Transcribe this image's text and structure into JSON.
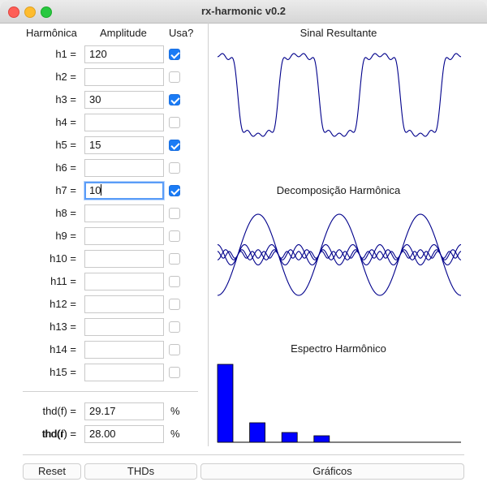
{
  "window": {
    "title": "rx-harmonic  v0.2"
  },
  "table": {
    "headers": {
      "harmonic": "Harmônica",
      "amplitude": "Amplitude",
      "use": "Usa?"
    },
    "rows": [
      {
        "label": "h1 =",
        "value": "120",
        "checked": true
      },
      {
        "label": "h2 =",
        "value": "",
        "checked": false
      },
      {
        "label": "h3 =",
        "value": "30",
        "checked": true
      },
      {
        "label": "h4 =",
        "value": "",
        "checked": false
      },
      {
        "label": "h5 =",
        "value": "15",
        "checked": true
      },
      {
        "label": "h6 =",
        "value": "",
        "checked": false
      },
      {
        "label": "h7 =",
        "value": "10",
        "checked": true,
        "focused": true
      },
      {
        "label": "h8 =",
        "value": "",
        "checked": false
      },
      {
        "label": "h9 =",
        "value": "",
        "checked": false
      },
      {
        "label": "h10 =",
        "value": "",
        "checked": false
      },
      {
        "label": "h11 =",
        "value": "",
        "checked": false
      },
      {
        "label": "h12 =",
        "value": "",
        "checked": false
      },
      {
        "label": "h13 =",
        "value": "",
        "checked": false
      },
      {
        "label": "h14 =",
        "value": "",
        "checked": false
      },
      {
        "label": "h15 =",
        "value": "",
        "checked": false
      }
    ]
  },
  "thd": {
    "f": {
      "label": "thd(f) =",
      "value": "29.17",
      "unit": "%"
    },
    "r": {
      "label": "thd(r) =",
      "value": "28.00",
      "unit": "%"
    }
  },
  "charts": {
    "resultant_title": "Sinal Resultante",
    "decomposition_title": "Decomposição Harmônica",
    "spectrum_title": "Espectro Harmônico",
    "wave_color": "#00008b",
    "bar_color": "#0000ff",
    "cycles": 3
  },
  "buttons": {
    "reset": "Reset",
    "thds": "THDs",
    "graphs": "Gráficos"
  }
}
